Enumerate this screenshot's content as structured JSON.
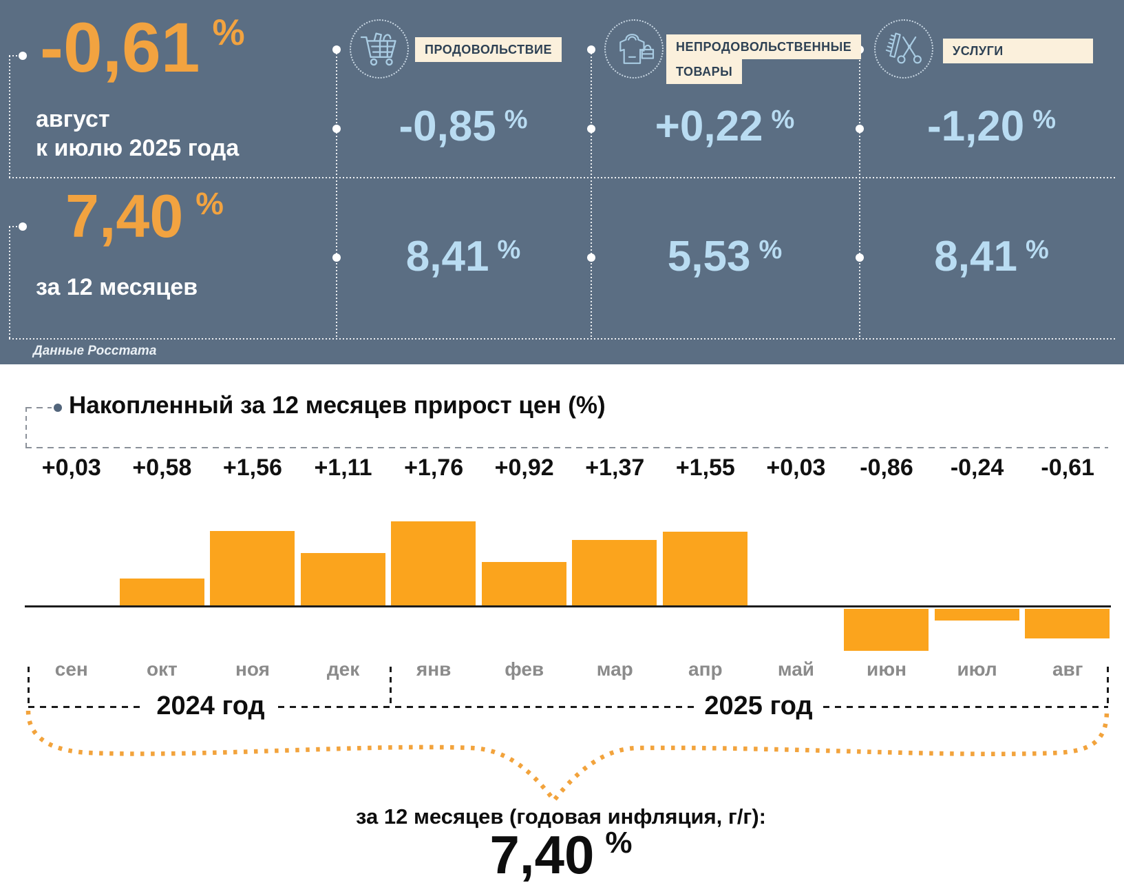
{
  "banner": {
    "monthly": {
      "value": "-0,61",
      "unit": "%",
      "caption_line1": "август",
      "caption_line2": "к июлю 2025 года"
    },
    "annual": {
      "value": "7,40",
      "unit": "%",
      "caption": "за 12 месяцев"
    },
    "source": "Данные Росстата",
    "categories": [
      {
        "id": "food",
        "label_line1": "ПРОДОВОЛЬСТВИЕ",
        "label_line2": "",
        "monthly": "-0,85",
        "annual": "8,41",
        "unit": "%"
      },
      {
        "id": "nonfood",
        "label_line1": "НЕПРОДОВОЛЬСТВЕННЫЕ",
        "label_line2": "ТОВАРЫ",
        "monthly": "+0,22",
        "annual": "5,53",
        "unit": "%"
      },
      {
        "id": "services",
        "label_line1": "УСЛУГИ",
        "label_line2": "",
        "monthly": "-1,20",
        "annual": "8,41",
        "unit": "%"
      }
    ]
  },
  "chart_data": {
    "type": "bar",
    "title": "Накопленный за 12 месяцев прирост цен (%)",
    "categories": [
      "сен",
      "окт",
      "ноя",
      "дек",
      "янв",
      "фев",
      "мар",
      "апр",
      "май",
      "июн",
      "июл",
      "авг"
    ],
    "values": [
      0.03,
      0.58,
      1.56,
      1.11,
      1.76,
      0.92,
      1.37,
      1.55,
      0.03,
      -0.86,
      -0.24,
      -0.61
    ],
    "labels": [
      "+0,03",
      "+0,58",
      "+1,56",
      "+1,11",
      "+1,76",
      "+0,92",
      "+1,37",
      "+1,55",
      "+0,03",
      "-0,86",
      "-0,24",
      "-0,61"
    ],
    "year_groups": [
      {
        "label": "2024 год",
        "months": [
          "сен",
          "окт",
          "ноя",
          "дек"
        ]
      },
      {
        "label": "2025 год",
        "months": [
          "янв",
          "фев",
          "мар",
          "апр",
          "май",
          "июн",
          "июл",
          "авг"
        ]
      }
    ],
    "bar_color": "#FBA41D",
    "xlabel": "",
    "ylabel": "",
    "ylim": [
      -1.0,
      2.0
    ],
    "grid": false,
    "legend": "none"
  },
  "footer": {
    "annual_caption": "за 12 месяцев (годовая инфляция, г/г):",
    "annual_value": "7,40",
    "unit": "%"
  },
  "colors": {
    "banner_bg": "#5B6E83",
    "accent_orange": "#F2A340",
    "bar_orange": "#FBA41D",
    "value_light_blue": "#B9DCF2",
    "label_cream_bg": "#FBF0DC",
    "label_navy_text": "#2E4154",
    "month_gray": "#8B8B8B",
    "icon_stroke": "#A9CCE3"
  }
}
